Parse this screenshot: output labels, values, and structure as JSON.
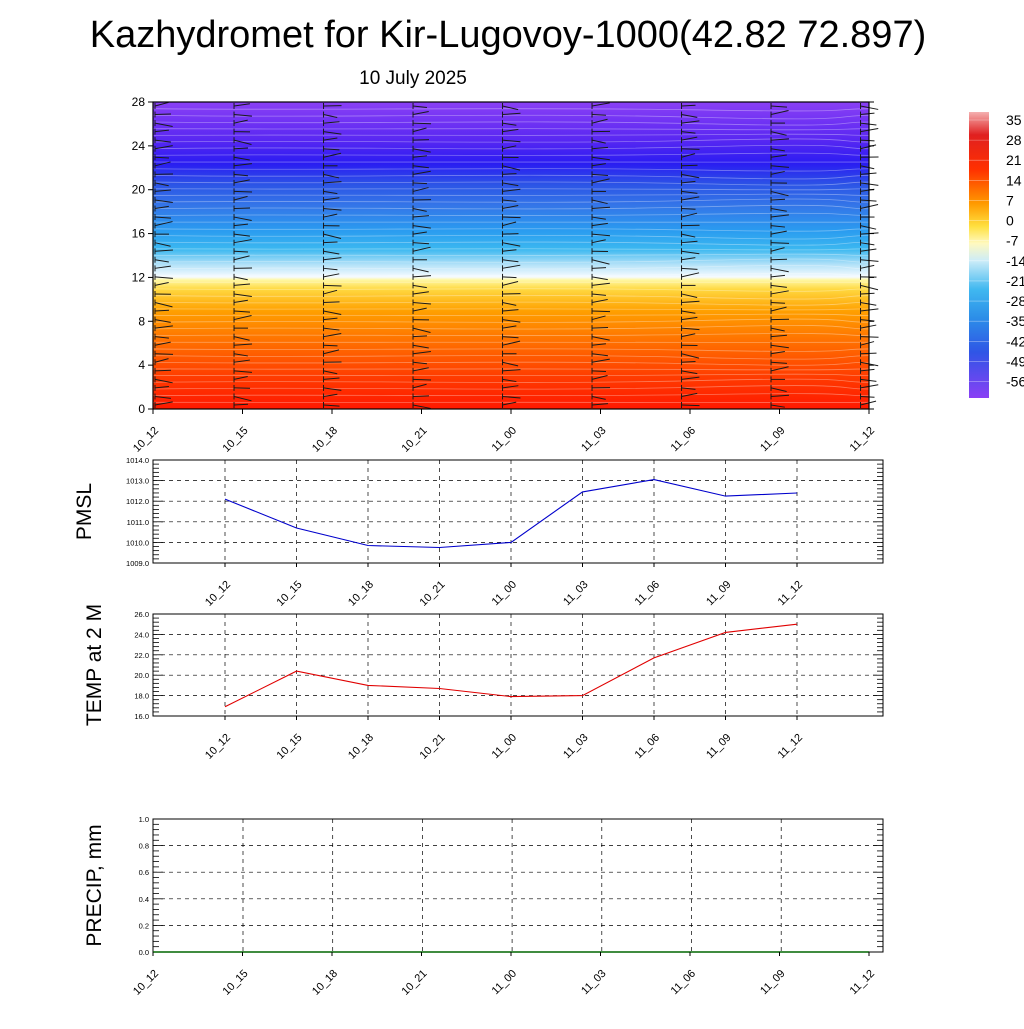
{
  "title": "Kazhydromet for Kir-Lugovoy-1000(42.82 72.897)",
  "subtitle": "10 July 2025",
  "time_labels": [
    "10_12",
    "10_15",
    "10_18",
    "10_21",
    "11_00",
    "11_03",
    "11_06",
    "11_09",
    "11_12"
  ],
  "chart_data": [
    {
      "type": "heatmap",
      "name_hint": "cross-section",
      "y_ticks": [
        0,
        4,
        8,
        12,
        16,
        20,
        24,
        28
      ],
      "ylim": [
        0,
        28
      ],
      "x_categories": [
        "10_12",
        "10_15",
        "10_18",
        "10_21",
        "11_00",
        "11_03",
        "11_06",
        "11_09",
        "11_12"
      ],
      "colorbar_labels": [
        "35",
        "28",
        "21",
        "14",
        "7",
        "0",
        "-7",
        "-14",
        "-21",
        "-28",
        "-35",
        "-42",
        "-49",
        "-56"
      ],
      "colorbar_range": [
        -56,
        35
      ],
      "colors": {
        "warm_low": "#ff1a00",
        "orange": "#ff9900",
        "yellow": "#ffee55",
        "white": "#f6fbff",
        "cyan": "#22b5f0",
        "blue": "#2a5ce8",
        "deep_blue": "#3a12f0",
        "violet": "#8a3cf5"
      }
    },
    {
      "type": "line",
      "ylabel": "PMSL",
      "ylim": [
        1009.0,
        1014.0
      ],
      "y_ticks": [
        "1009.0",
        "1010.0",
        "1011.0",
        "1012.0",
        "1013.0",
        "1014.0"
      ],
      "categories": [
        "10_12",
        "10_15",
        "10_18",
        "10_21",
        "11_00",
        "11_03",
        "11_06",
        "11_09",
        "11_12"
      ],
      "values": [
        1012.1,
        1010.7,
        1009.85,
        1009.75,
        1010.0,
        1012.45,
        1013.05,
        1012.25,
        1012.4
      ],
      "color": "#0000cc",
      "grid": true
    },
    {
      "type": "line",
      "ylabel": "TEMP at 2 M",
      "ylim": [
        16.0,
        26.0
      ],
      "y_ticks": [
        "16.0",
        "18.0",
        "20.0",
        "22.0",
        "24.0",
        "26.0"
      ],
      "categories": [
        "10_12",
        "10_15",
        "10_18",
        "10_21",
        "11_00",
        "11_03",
        "11_06",
        "11_09",
        "11_12"
      ],
      "values": [
        16.9,
        20.4,
        19.0,
        18.7,
        17.9,
        18.0,
        21.7,
        24.2,
        25.0
      ],
      "color": "#e00000",
      "grid": true
    },
    {
      "type": "line",
      "ylabel": "PRECIP, mm",
      "ylim": [
        0.0,
        1.0
      ],
      "y_ticks": [
        "0.0",
        "0.2",
        "0.4",
        "0.6",
        "0.8",
        "1.0"
      ],
      "categories": [
        "10_12",
        "10_15",
        "10_18",
        "10_21",
        "11_00",
        "11_03",
        "11_06",
        "11_09",
        "11_12"
      ],
      "values": [
        0,
        0,
        0,
        0,
        0,
        0,
        0,
        0,
        0
      ],
      "color": "#006600",
      "grid": true
    }
  ]
}
